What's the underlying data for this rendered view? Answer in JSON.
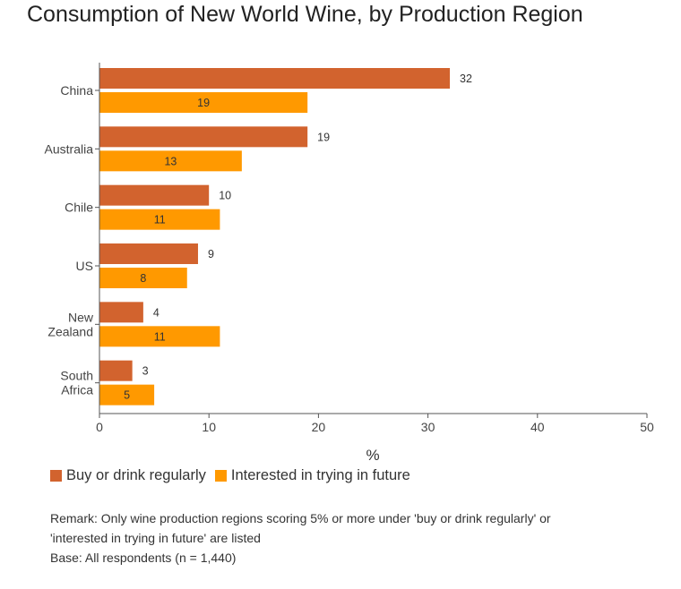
{
  "page": {
    "title": "Consumption of New World Wine, by Production Region",
    "remark_line1": "Remark: Only wine production regions scoring 5% or more under 'buy or drink regularly' or",
    "remark_line2": "'interested in trying in future' are listed",
    "base": "Base: All respondents (n = 1,440)"
  },
  "chart_data": {
    "type": "bar",
    "orientation": "horizontal",
    "title": "Consumption of New World Wine, by Production Region",
    "xlabel": "%",
    "ylabel": "",
    "xlim": [
      0,
      50
    ],
    "xticks": [
      "0",
      "10",
      "20",
      "30",
      "40",
      "50"
    ],
    "categories": [
      [
        "China"
      ],
      [
        "Australia"
      ],
      [
        "Chile"
      ],
      [
        "US"
      ],
      [
        "New",
        "Zealand"
      ],
      [
        "South",
        "Africa"
      ]
    ],
    "series": [
      {
        "name": "Buy or drink regularly",
        "color": "#d2632e",
        "values": [
          32,
          19,
          10,
          9,
          4,
          3
        ]
      },
      {
        "name": "Interested in trying in future",
        "color": "#ff9900",
        "values": [
          19,
          13,
          11,
          8,
          11,
          5
        ]
      }
    ],
    "legend_position": "bottom-left",
    "grid": false
  }
}
